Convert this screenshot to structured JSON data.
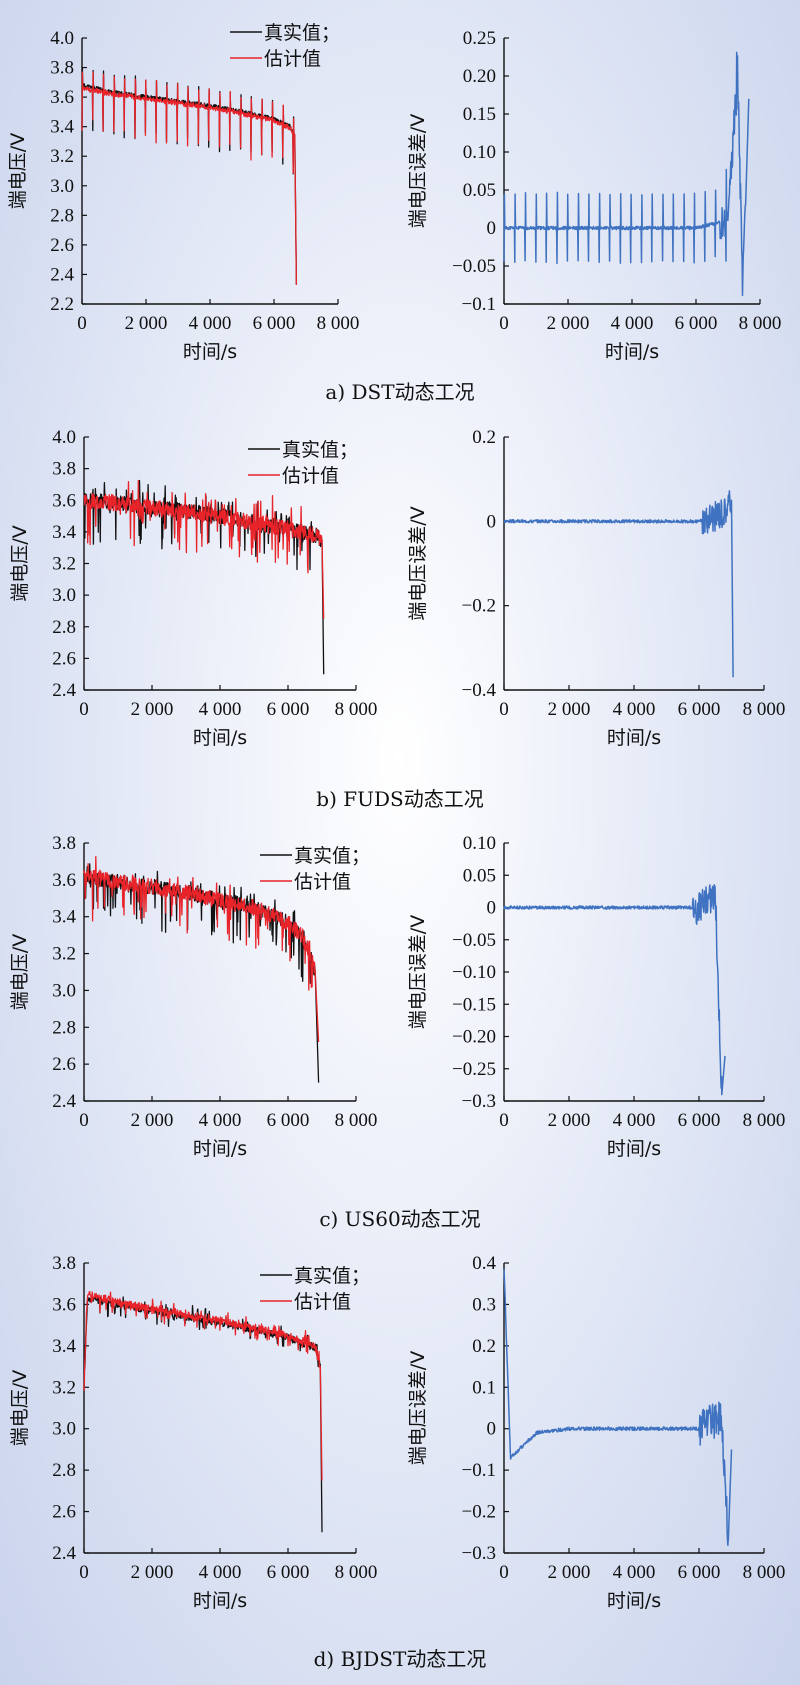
{
  "panels": [
    {
      "caption": "a) DST动态工况",
      "chart_data": [
        {
          "type": "line",
          "xlabel": "时间/s",
          "ylabel": "端电压/V",
          "xlim": [
            0,
            8000
          ],
          "ylim": [
            2.2,
            4.0
          ],
          "xticks": [
            "0",
            "2 000",
            "4 000",
            "6 000",
            "8 000"
          ],
          "yticks": [
            "2.2",
            "2.4",
            "2.6",
            "2.8",
            "3.0",
            "3.2",
            "3.4",
            "3.6",
            "3.8",
            "4.0"
          ],
          "legend": "top-right",
          "series": [
            {
              "name": "真实值；",
              "color": "#111111",
              "x": [
                0,
                1000,
                2000,
                3000,
                4000,
                5000,
                6000,
                6500,
                6650,
                6700
              ],
              "values": [
                3.68,
                3.63,
                3.6,
                3.57,
                3.54,
                3.5,
                3.45,
                3.4,
                3.34,
                2.33
              ]
            },
            {
              "name": "估计值",
              "color": "#e8242a",
              "x": [
                0,
                1000,
                2000,
                3000,
                4000,
                5000,
                6000,
                6500,
                6650,
                6700
              ],
              "values": [
                3.66,
                3.62,
                3.59,
                3.56,
                3.53,
                3.49,
                3.44,
                3.39,
                3.33,
                2.33
              ]
            }
          ]
        },
        {
          "type": "line",
          "xlabel": "时间/s",
          "ylabel": "端电压误差/V",
          "xlim": [
            0,
            8000
          ],
          "ylim": [
            -0.1,
            0.25
          ],
          "xticks": [
            "0",
            "2 000",
            "4 000",
            "6 000",
            "8 000"
          ],
          "yticks": [
            "−0.1",
            "−0.05",
            "0",
            "0.05",
            "0.10",
            "0.15",
            "0.20",
            "0.25"
          ],
          "series": [
            {
              "color": "#3f72c0",
              "x": [
                0,
                1000,
                2000,
                3000,
                4000,
                5000,
                6000,
                7000,
                7300,
                7450,
                7550,
                7650
              ],
              "values": [
                0.0,
                0.0,
                0.0,
                0.0,
                0.0,
                0.0,
                0.0,
                0.01,
                0.21,
                -0.07,
                0.03,
                0.17
              ]
            }
          ]
        }
      ]
    },
    {
      "caption": "b) FUDS动态工况",
      "chart_data": [
        {
          "type": "line",
          "xlabel": "时间/s",
          "ylabel": "端电压/V",
          "xlim": [
            0,
            8000
          ],
          "ylim": [
            2.4,
            4.0
          ],
          "xticks": [
            "0",
            "2 000",
            "4 000",
            "6 000",
            "8 000"
          ],
          "yticks": [
            "2.4",
            "2.6",
            "2.8",
            "3.0",
            "3.2",
            "3.4",
            "3.6",
            "3.8",
            "4.0"
          ],
          "legend": "top-right",
          "series": [
            {
              "name": "真实值；",
              "color": "#111111",
              "x": [
                0,
                1000,
                2000,
                3000,
                4000,
                5000,
                6000,
                6800,
                7000,
                7050
              ],
              "values": [
                3.6,
                3.58,
                3.55,
                3.53,
                3.5,
                3.46,
                3.42,
                3.38,
                3.35,
                2.5
              ]
            },
            {
              "name": "估计值",
              "color": "#e8242a",
              "x": [
                0,
                1000,
                2000,
                3000,
                4000,
                5000,
                6000,
                6800,
                7000,
                7050
              ],
              "values": [
                3.6,
                3.58,
                3.55,
                3.53,
                3.5,
                3.46,
                3.42,
                3.38,
                3.35,
                2.85
              ]
            }
          ]
        },
        {
          "type": "line",
          "xlabel": "时间/s",
          "ylabel": "端电压误差/V",
          "xlim": [
            0,
            8000
          ],
          "ylim": [
            -0.4,
            0.2
          ],
          "xticks": [
            "0",
            "2 000",
            "4 000",
            "6 000",
            "8 000"
          ],
          "yticks": [
            "−0.4",
            "−0.2",
            "0",
            "0.2"
          ],
          "series": [
            {
              "color": "#3f72c0",
              "x": [
                0,
                1000,
                2000,
                3000,
                4000,
                5000,
                6000,
                6800,
                7000,
                7050
              ],
              "values": [
                0.0,
                0.0,
                0.0,
                0.0,
                0.0,
                0.0,
                0.0,
                0.02,
                0.05,
                -0.37
              ]
            }
          ]
        }
      ]
    },
    {
      "caption": "c) US60动态工况",
      "chart_data": [
        {
          "type": "line",
          "xlabel": "时间/s",
          "ylabel": "端电压/V",
          "xlim": [
            0,
            8000
          ],
          "ylim": [
            2.4,
            3.8
          ],
          "xticks": [
            "0",
            "2 000",
            "4 000",
            "6 000",
            "8 000"
          ],
          "yticks": [
            "2.4",
            "2.6",
            "2.8",
            "3.0",
            "3.2",
            "3.4",
            "3.6",
            "3.8"
          ],
          "legend": "top-right",
          "series": [
            {
              "name": "真实值；",
              "color": "#111111",
              "x": [
                0,
                1000,
                2000,
                3000,
                4000,
                5000,
                6000,
                6500,
                6800,
                6900
              ],
              "values": [
                3.62,
                3.59,
                3.56,
                3.53,
                3.49,
                3.45,
                3.37,
                3.28,
                3.1,
                2.5
              ]
            },
            {
              "name": "估计值",
              "color": "#e8242a",
              "x": [
                0,
                1000,
                2000,
                3000,
                4000,
                5000,
                6000,
                6500,
                6800,
                6900
              ],
              "values": [
                3.62,
                3.59,
                3.56,
                3.53,
                3.49,
                3.45,
                3.37,
                3.28,
                3.1,
                2.72
              ]
            }
          ]
        },
        {
          "type": "line",
          "xlabel": "时间/s",
          "ylabel": "端电压误差/V",
          "xlim": [
            0,
            8000
          ],
          "ylim": [
            -0.3,
            0.1
          ],
          "xticks": [
            "0",
            "2 000",
            "4 000",
            "6 000",
            "8 000"
          ],
          "yticks": [
            "−0.3",
            "−0.25",
            "−0.20",
            "−0.15",
            "−0.10",
            "−0.05",
            "0",
            "0.05",
            "0.10"
          ],
          "series": [
            {
              "color": "#3f72c0",
              "x": [
                0,
                1000,
                2000,
                3000,
                4000,
                5000,
                6000,
                6500,
                6700,
                6800
              ],
              "values": [
                0.0,
                0.0,
                0.0,
                0.0,
                0.0,
                0.0,
                0.0,
                0.02,
                -0.29,
                -0.23
              ]
            }
          ]
        }
      ]
    },
    {
      "caption": "d) BJDST动态工况",
      "chart_data": [
        {
          "type": "line",
          "xlabel": "时间/s",
          "ylabel": "端电压/V",
          "xlim": [
            0,
            8000
          ],
          "ylim": [
            2.4,
            3.8
          ],
          "xticks": [
            "0",
            "2 000",
            "4 000",
            "6 000",
            "8 000"
          ],
          "yticks": [
            "2.4",
            "2.6",
            "2.8",
            "3.0",
            "3.2",
            "3.4",
            "3.6",
            "3.8"
          ],
          "legend": "top-right",
          "series": [
            {
              "name": "真实值；",
              "color": "#111111",
              "x": [
                0,
                100,
                1000,
                2000,
                3000,
                4000,
                5000,
                6000,
                6800,
                6950,
                7000
              ],
              "values": [
                3.2,
                3.63,
                3.6,
                3.57,
                3.54,
                3.51,
                3.48,
                3.44,
                3.39,
                3.3,
                2.5
              ]
            },
            {
              "name": "估计值",
              "color": "#e8242a",
              "x": [
                0,
                100,
                1000,
                2000,
                3000,
                4000,
                5000,
                6000,
                6800,
                6950,
                7000
              ],
              "values": [
                3.2,
                3.65,
                3.61,
                3.58,
                3.55,
                3.52,
                3.49,
                3.45,
                3.4,
                3.3,
                2.75
              ]
            }
          ]
        },
        {
          "type": "line",
          "xlabel": "时间/s",
          "ylabel": "端电压误差/V",
          "xlim": [
            0,
            8000
          ],
          "ylim": [
            -0.3,
            0.4
          ],
          "xticks": [
            "0",
            "2 000",
            "4 000",
            "6 000",
            "8 000"
          ],
          "yticks": [
            "−0.3",
            "−0.2",
            "−0.1",
            "0",
            "0.1",
            "0.2",
            "0.3",
            "0.4"
          ],
          "series": [
            {
              "color": "#3f72c0",
              "x": [
                0,
                200,
                1000,
                2000,
                3000,
                4000,
                5000,
                6000,
                6700,
                6900,
                7000
              ],
              "values": [
                0.39,
                -0.07,
                -0.01,
                0.0,
                0.0,
                0.0,
                0.0,
                0.0,
                0.03,
                -0.27,
                -0.05
              ]
            }
          ]
        }
      ]
    }
  ]
}
